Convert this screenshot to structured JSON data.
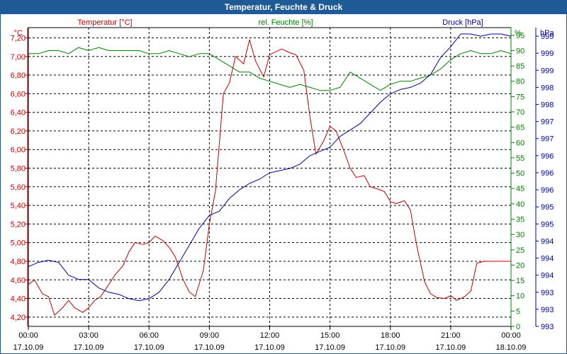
{
  "window": {
    "title": "Temperatur, Feuchte & Druck"
  },
  "colors": {
    "temperature": "#c00000",
    "humidity": "#008000",
    "pressure": "#000099",
    "title_bg": "#1e5a96",
    "grid": "#000000"
  },
  "chart_data": {
    "type": "line",
    "title": "Temperatur, Feuchte & Druck",
    "x_ticks": [
      {
        "time": "00:00",
        "date": "17.10.09"
      },
      {
        "time": "03:00",
        "date": "17.10.09"
      },
      {
        "time": "06:00",
        "date": "17.10.09"
      },
      {
        "time": "09:00",
        "date": "17.10.09"
      },
      {
        "time": "12:00",
        "date": "17.10.09"
      },
      {
        "time": "15:00",
        "date": "17.10.09"
      },
      {
        "time": "18:00",
        "date": "17.10.09"
      },
      {
        "time": "21:00",
        "date": "17.10.09"
      },
      {
        "time": "00:00",
        "date": "18.10.09"
      }
    ],
    "x_range_hours": [
      0,
      24
    ],
    "axes": {
      "temperature": {
        "label": "Temperatur [°C]",
        "unit": "°C",
        "range": [
          4.1,
          7.31
        ],
        "ticks": [
          "4,20",
          "4,40",
          "4,60",
          "4,80",
          "5,00",
          "5,20",
          "5,40",
          "5,60",
          "5,80",
          "6,00",
          "6,20",
          "6,40",
          "6,60",
          "6,80",
          "7,00",
          "7,20"
        ],
        "tick_values": [
          4.2,
          4.4,
          4.6,
          4.8,
          5.0,
          5.2,
          5.4,
          5.6,
          5.8,
          6.0,
          6.2,
          6.4,
          6.6,
          6.8,
          7.0,
          7.2
        ]
      },
      "humidity": {
        "label": "rel. Feuchte [%]",
        "unit": "%",
        "range": [
          0,
          97.5
        ],
        "ticks": [
          "0",
          "5",
          "10",
          "15",
          "20",
          "25",
          "30",
          "35",
          "40",
          "45",
          "50",
          "55",
          "60",
          "65",
          "70",
          "75",
          "80",
          "85",
          "90",
          "95"
        ],
        "tick_values": [
          0,
          5,
          10,
          15,
          20,
          25,
          30,
          35,
          40,
          45,
          50,
          55,
          60,
          65,
          70,
          75,
          80,
          85,
          90,
          95
        ]
      },
      "pressure": {
        "label": "Druck [hPa]",
        "unit": "hPa",
        "range": [
          992.5,
          999.5
        ],
        "ticks": [
          "993",
          "993",
          "993",
          "994",
          "994",
          "994",
          "995",
          "995",
          "996",
          "996",
          "996",
          "997",
          "997",
          "998",
          "998",
          "999",
          "999",
          "999"
        ],
        "tick_values": [
          992.5,
          992.9,
          993.3,
          993.7,
          994.1,
          994.5,
          994.9,
          995.3,
          995.7,
          996.1,
          996.5,
          996.9,
          997.3,
          997.7,
          998.1,
          998.5,
          998.9,
          999.3
        ]
      }
    },
    "series": [
      {
        "name": "Temperatur [°C]",
        "axis": "temperature",
        "x": [
          0,
          0.3,
          0.7,
          1,
          1.3,
          1.7,
          2,
          2.3,
          2.7,
          3,
          3.3,
          3.6,
          4,
          4.3,
          4.7,
          5,
          5.3,
          5.7,
          6,
          6.3,
          6.7,
          7,
          7.3,
          7.7,
          8,
          8.3,
          8.7,
          9,
          9.3,
          9.7,
          10,
          10.3,
          10.7,
          11,
          11.3,
          11.7,
          12,
          12.3,
          12.6,
          13,
          13.3,
          13.7,
          14,
          14.3,
          14.7,
          15,
          15.3,
          15.7,
          16,
          16.3,
          16.7,
          17,
          17.3,
          17.7,
          18,
          18.3,
          18.7,
          19,
          19.3,
          19.7,
          20,
          20.3,
          20.7,
          21,
          21.3,
          21.7,
          22,
          22.3,
          22.7,
          23,
          23.3,
          23.7,
          24
        ],
        "values": [
          4.55,
          4.6,
          4.45,
          4.42,
          4.22,
          4.3,
          4.38,
          4.3,
          4.25,
          4.3,
          4.38,
          4.42,
          4.55,
          4.65,
          4.75,
          4.9,
          5.0,
          4.98,
          5.0,
          5.07,
          5.02,
          4.95,
          4.85,
          4.6,
          4.47,
          4.42,
          4.7,
          5.2,
          5.55,
          6.6,
          6.72,
          7.0,
          6.92,
          7.18,
          6.95,
          6.78,
          7.02,
          7.05,
          7.08,
          7.04,
          7.02,
          6.85,
          6.35,
          5.95,
          6.1,
          6.25,
          6.2,
          5.98,
          5.8,
          5.7,
          5.72,
          5.6,
          5.58,
          5.55,
          5.44,
          5.42,
          5.45,
          5.35,
          4.98,
          4.58,
          4.45,
          4.41,
          4.4,
          4.43,
          4.38,
          4.42,
          4.48,
          4.78,
          4.8,
          4.8,
          4.8,
          4.8,
          4.8
        ]
      },
      {
        "name": "rel. Feuchte [%]",
        "axis": "humidity",
        "x": [
          0,
          0.5,
          1,
          1.5,
          2,
          2.5,
          3,
          3.5,
          4,
          4.5,
          5,
          5.5,
          6,
          6.5,
          7,
          7.5,
          8,
          8.5,
          9,
          9.5,
          10,
          10.5,
          11,
          11.5,
          12,
          12.5,
          13,
          13.5,
          14,
          14.5,
          15,
          15.5,
          16,
          16.5,
          17,
          17.5,
          18,
          18.5,
          19,
          19.5,
          20,
          20.5,
          21,
          21.5,
          22,
          22.5,
          23,
          23.5,
          24
        ],
        "values": [
          89,
          89,
          90,
          90,
          89,
          91,
          90,
          91,
          90,
          90,
          90,
          90,
          89,
          89,
          90,
          89,
          88,
          89,
          89,
          87,
          85,
          83,
          83,
          81,
          80,
          79,
          78,
          79,
          78,
          77,
          77,
          78,
          83,
          81,
          79,
          77,
          79,
          80,
          80,
          81,
          82,
          84,
          87,
          89,
          90,
          89,
          89,
          90,
          89
        ],
        "x_extra": [],
        "values_extra": []
      },
      {
        "name": "Druck [hPa]",
        "axis": "pressure",
        "x": [
          0,
          0.5,
          1,
          1.5,
          2,
          2.5,
          3,
          3.5,
          4,
          4.5,
          5,
          5.5,
          6,
          6.5,
          7,
          7.5,
          8,
          8.5,
          9,
          9.5,
          10,
          10.5,
          11,
          11.5,
          12,
          12.5,
          13,
          13.5,
          14,
          14.5,
          15,
          15.5,
          16,
          16.5,
          17,
          17.5,
          18,
          18.5,
          19,
          19.5,
          20,
          20.5,
          21,
          21.5,
          22,
          22.5,
          23,
          23.5,
          24
        ],
        "values": [
          993.9,
          994.0,
          994.05,
          994.0,
          993.7,
          993.6,
          993.6,
          993.4,
          993.3,
          993.25,
          993.15,
          993.1,
          993.15,
          993.3,
          993.6,
          994.0,
          994.4,
          994.8,
          995.1,
          995.2,
          995.5,
          995.7,
          995.85,
          995.95,
          996.1,
          996.15,
          996.2,
          996.3,
          996.5,
          996.6,
          996.7,
          996.95,
          997.1,
          997.25,
          997.5,
          997.75,
          997.95,
          998.05,
          998.1,
          998.2,
          998.4,
          998.8,
          999.05,
          999.35,
          999.35,
          999.3,
          999.35,
          999.35,
          999.3
        ]
      }
    ]
  }
}
